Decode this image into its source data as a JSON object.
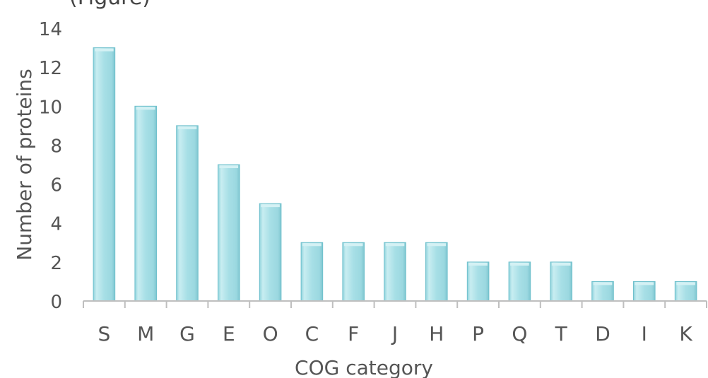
{
  "chart_data": {
    "type": "bar",
    "categories": [
      "S",
      "M",
      "G",
      "E",
      "O",
      "C",
      "F",
      "J",
      "H",
      "P",
      "Q",
      "T",
      "D",
      "I",
      "K"
    ],
    "values": [
      13,
      10,
      9,
      7,
      5,
      3,
      3,
      3,
      3,
      2,
      2,
      2,
      1,
      1,
      1
    ],
    "title": "",
    "xlabel": "COG category",
    "ylabel": "Number of proteins",
    "ylim": [
      0,
      14
    ],
    "yticks": [
      0,
      2,
      4,
      6,
      8,
      10,
      12,
      14
    ],
    "grid": false,
    "legend": "none",
    "bar_color": "#a2dce4",
    "bar_edge_color": "#6fc0cc",
    "axis_color": "#bfbfbf",
    "text_color": "#555555"
  }
}
